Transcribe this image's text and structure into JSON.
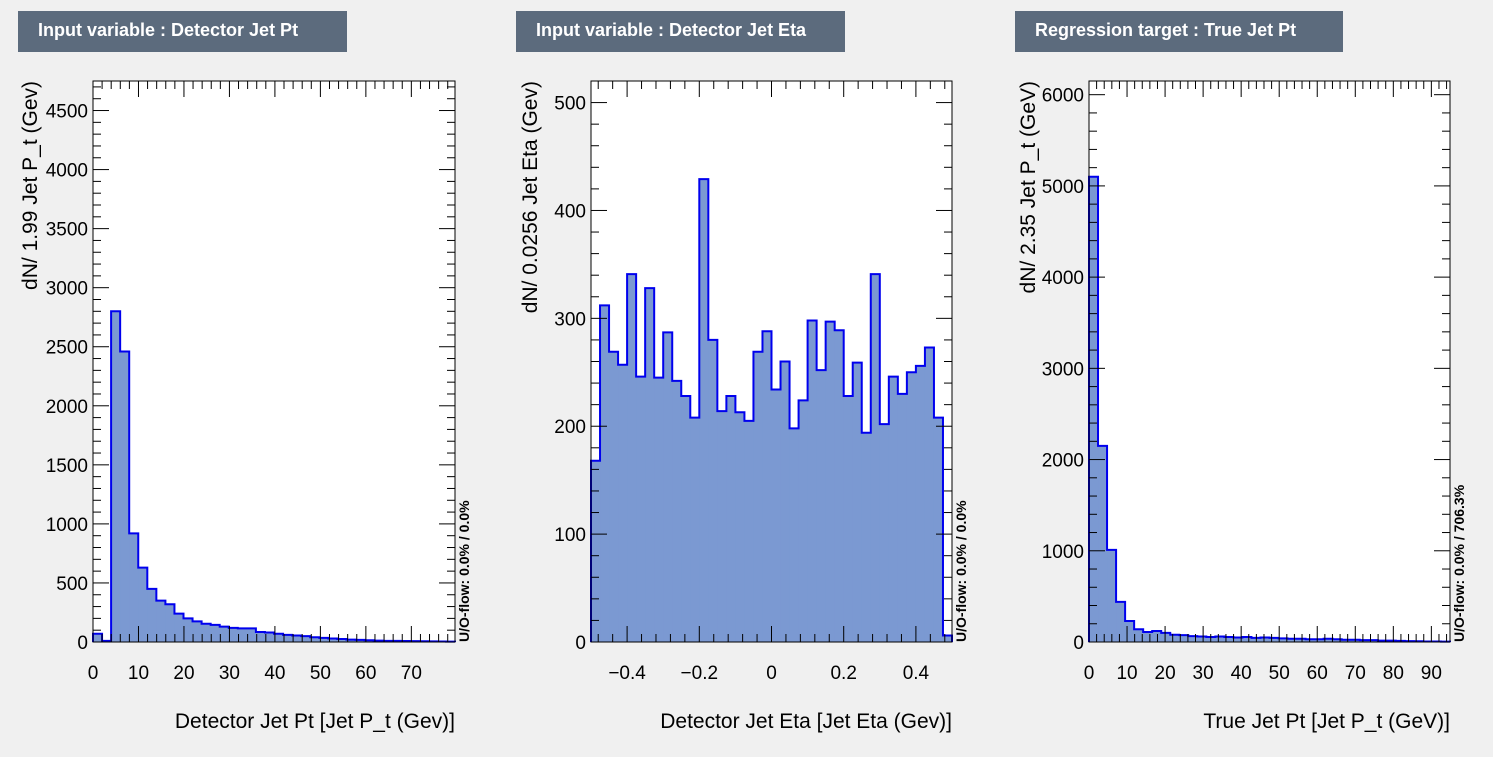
{
  "panels": [
    {
      "title": "Input variable : Detector Jet Pt"
    },
    {
      "title": "Input variable : Detector Jet Eta"
    },
    {
      "title": "Regression target : True Jet Pt"
    }
  ],
  "colors": {
    "fill": "#7b99d2",
    "line": "#0000ee",
    "frame": "#000000",
    "title_bg": "#5c6b7d"
  },
  "chart_data": [
    {
      "type": "bar",
      "title": "Input variable : Detector Jet Pt",
      "xlabel": "Detector Jet Pt  [Jet P_t (Gev)]",
      "ylabel": "dN/ 1.99 Jet P_t (Gev)",
      "overflow_label": "U/O-flow: 0.0% / 0.0%",
      "xlim": [
        0,
        79.6
      ],
      "ylim": [
        0,
        4750
      ],
      "xticks": [
        0,
        10,
        20,
        30,
        40,
        50,
        60,
        70
      ],
      "yticks": [
        0,
        500,
        1000,
        1500,
        2000,
        2500,
        3000,
        3500,
        4000,
        4500
      ],
      "values": [
        70,
        10,
        2800,
        2460,
        920,
        630,
        450,
        350,
        320,
        240,
        200,
        175,
        155,
        145,
        130,
        120,
        115,
        115,
        85,
        80,
        70,
        60,
        55,
        50,
        40,
        35,
        30,
        25,
        20,
        18,
        15,
        12,
        10,
        9,
        8,
        7,
        6,
        5,
        4,
        3
      ]
    },
    {
      "type": "bar",
      "title": "Input variable : Detector Jet Eta",
      "xlabel": "Detector Jet Eta  [Jet Eta (Gev)]",
      "ylabel": "dN/ 0.0256 Jet Eta (Gev)",
      "overflow_label": "U/O-flow: 0.0% / 0.0%",
      "xlim": [
        -0.5,
        0.5
      ],
      "ylim": [
        0,
        520
      ],
      "xticks": [
        -0.4,
        -0.2,
        0,
        0.2,
        0.4
      ],
      "xticklabels": [
        "−0.4",
        "−0.2",
        "0",
        "0.2",
        "0.4"
      ],
      "yticks": [
        0,
        100,
        200,
        300,
        400,
        500
      ],
      "values": [
        168,
        312,
        269,
        257,
        341,
        246,
        328,
        245,
        287,
        242,
        228,
        208,
        429,
        280,
        214,
        228,
        213,
        205,
        269,
        288,
        234,
        260,
        198,
        224,
        298,
        252,
        297,
        289,
        228,
        259,
        194,
        341,
        202,
        246,
        230,
        250,
        256,
        273,
        208,
        6
      ]
    },
    {
      "type": "bar",
      "title": "Regression target : True Jet Pt",
      "xlabel": "True Jet Pt  [Jet P_t (GeV)]",
      "ylabel": "dN/ 2.35 Jet P_t (GeV)",
      "overflow_label": "U/O-flow: 0.0% / 706.3%",
      "xlim": [
        0,
        94.9
      ],
      "ylim": [
        0,
        6150
      ],
      "xticks": [
        0,
        10,
        20,
        30,
        40,
        50,
        60,
        70,
        80,
        90
      ],
      "yticks": [
        0,
        1000,
        2000,
        3000,
        4000,
        5000,
        6000
      ],
      "values": [
        5100,
        2150,
        1010,
        440,
        230,
        140,
        110,
        120,
        100,
        80,
        75,
        65,
        60,
        55,
        60,
        55,
        50,
        55,
        45,
        50,
        45,
        40,
        35,
        35,
        30,
        30,
        35,
        30,
        25,
        25,
        20,
        20,
        15,
        15,
        12,
        10,
        8,
        6,
        5,
        4
      ]
    }
  ]
}
